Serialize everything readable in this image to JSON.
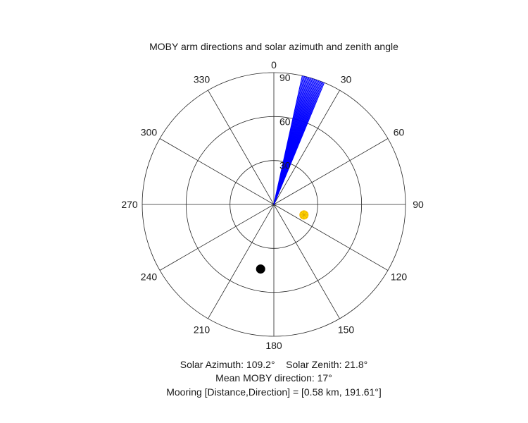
{
  "chart_data": {
    "type": "polar",
    "title": "MOBY arm directions and solar azimuth and zenith angle",
    "theta_zero": "top",
    "theta_direction": "clockwise",
    "theta_ticks": [
      "0",
      "30",
      "60",
      "90",
      "120",
      "150",
      "180",
      "210",
      "240",
      "270",
      "300",
      "330"
    ],
    "theta_tick_values": [
      0,
      30,
      60,
      90,
      120,
      150,
      180,
      210,
      240,
      270,
      300,
      330
    ],
    "r_ticks": [
      "30",
      "60",
      "90"
    ],
    "r_tick_values": [
      30,
      60,
      90
    ],
    "rlim": [
      0,
      90
    ],
    "grid": true,
    "series": [
      {
        "kind": "lines",
        "color": "#0000ff",
        "r": 90,
        "theta": [
          12.5,
          13.0,
          13.5,
          14.0,
          14.5,
          15.0,
          15.5,
          16.0,
          16.5,
          17.0,
          17.5,
          18.0,
          18.5,
          19.0,
          19.5,
          20.0,
          20.5,
          21.0,
          21.5,
          22.0,
          22.5
        ]
      },
      {
        "kind": "marker",
        "color": "#ffd700",
        "theta": 109.2,
        "r": 21.8
      },
      {
        "kind": "marker",
        "color": "#000000",
        "theta": 191.61,
        "r": 45
      }
    ],
    "annotations": {
      "solar": "Solar Azimuth: 109.2°    Solar Zenith: 21.8°",
      "mean_direction": "Mean MOBY direction: 17°",
      "mooring": "Mooring [Distance,Direction] = [0.58 km, 191.61°]"
    }
  }
}
